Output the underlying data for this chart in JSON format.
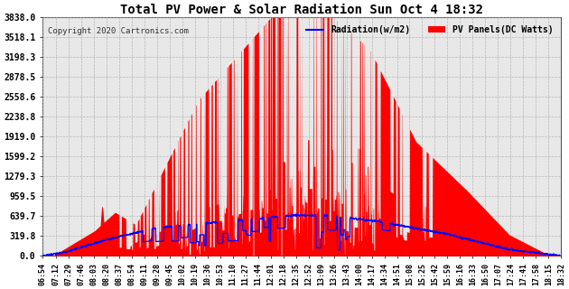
{
  "title": "Total PV Power & Solar Radiation Sun Oct 4 18:32",
  "copyright": "Copyright 2020 Cartronics.com",
  "legend_radiation": "Radiation(w/m2)",
  "legend_pv": "PV Panels(DC Watts)",
  "bg_color": "#ffffff",
  "plot_bg_color": "#e8e8e8",
  "grid_color": "#aaaaaa",
  "pv_color": "#ff0000",
  "radiation_color": "#0000ff",
  "yticks": [
    0.0,
    319.8,
    639.7,
    959.5,
    1279.3,
    1599.2,
    1919.0,
    2238.8,
    2558.6,
    2878.5,
    3198.3,
    3518.1,
    3838.0
  ],
  "ymax": 3838.0,
  "xtick_labels": [
    "06:54",
    "07:12",
    "07:29",
    "07:46",
    "08:03",
    "08:20",
    "08:37",
    "08:54",
    "09:11",
    "09:28",
    "09:45",
    "10:02",
    "10:19",
    "10:36",
    "10:53",
    "11:10",
    "11:27",
    "11:44",
    "12:01",
    "12:18",
    "12:35",
    "12:52",
    "13:09",
    "13:26",
    "13:43",
    "14:00",
    "14:17",
    "14:34",
    "14:51",
    "15:08",
    "15:25",
    "15:42",
    "15:59",
    "16:16",
    "16:33",
    "16:50",
    "17:07",
    "17:24",
    "17:41",
    "17:58",
    "18:15",
    "18:32"
  ]
}
